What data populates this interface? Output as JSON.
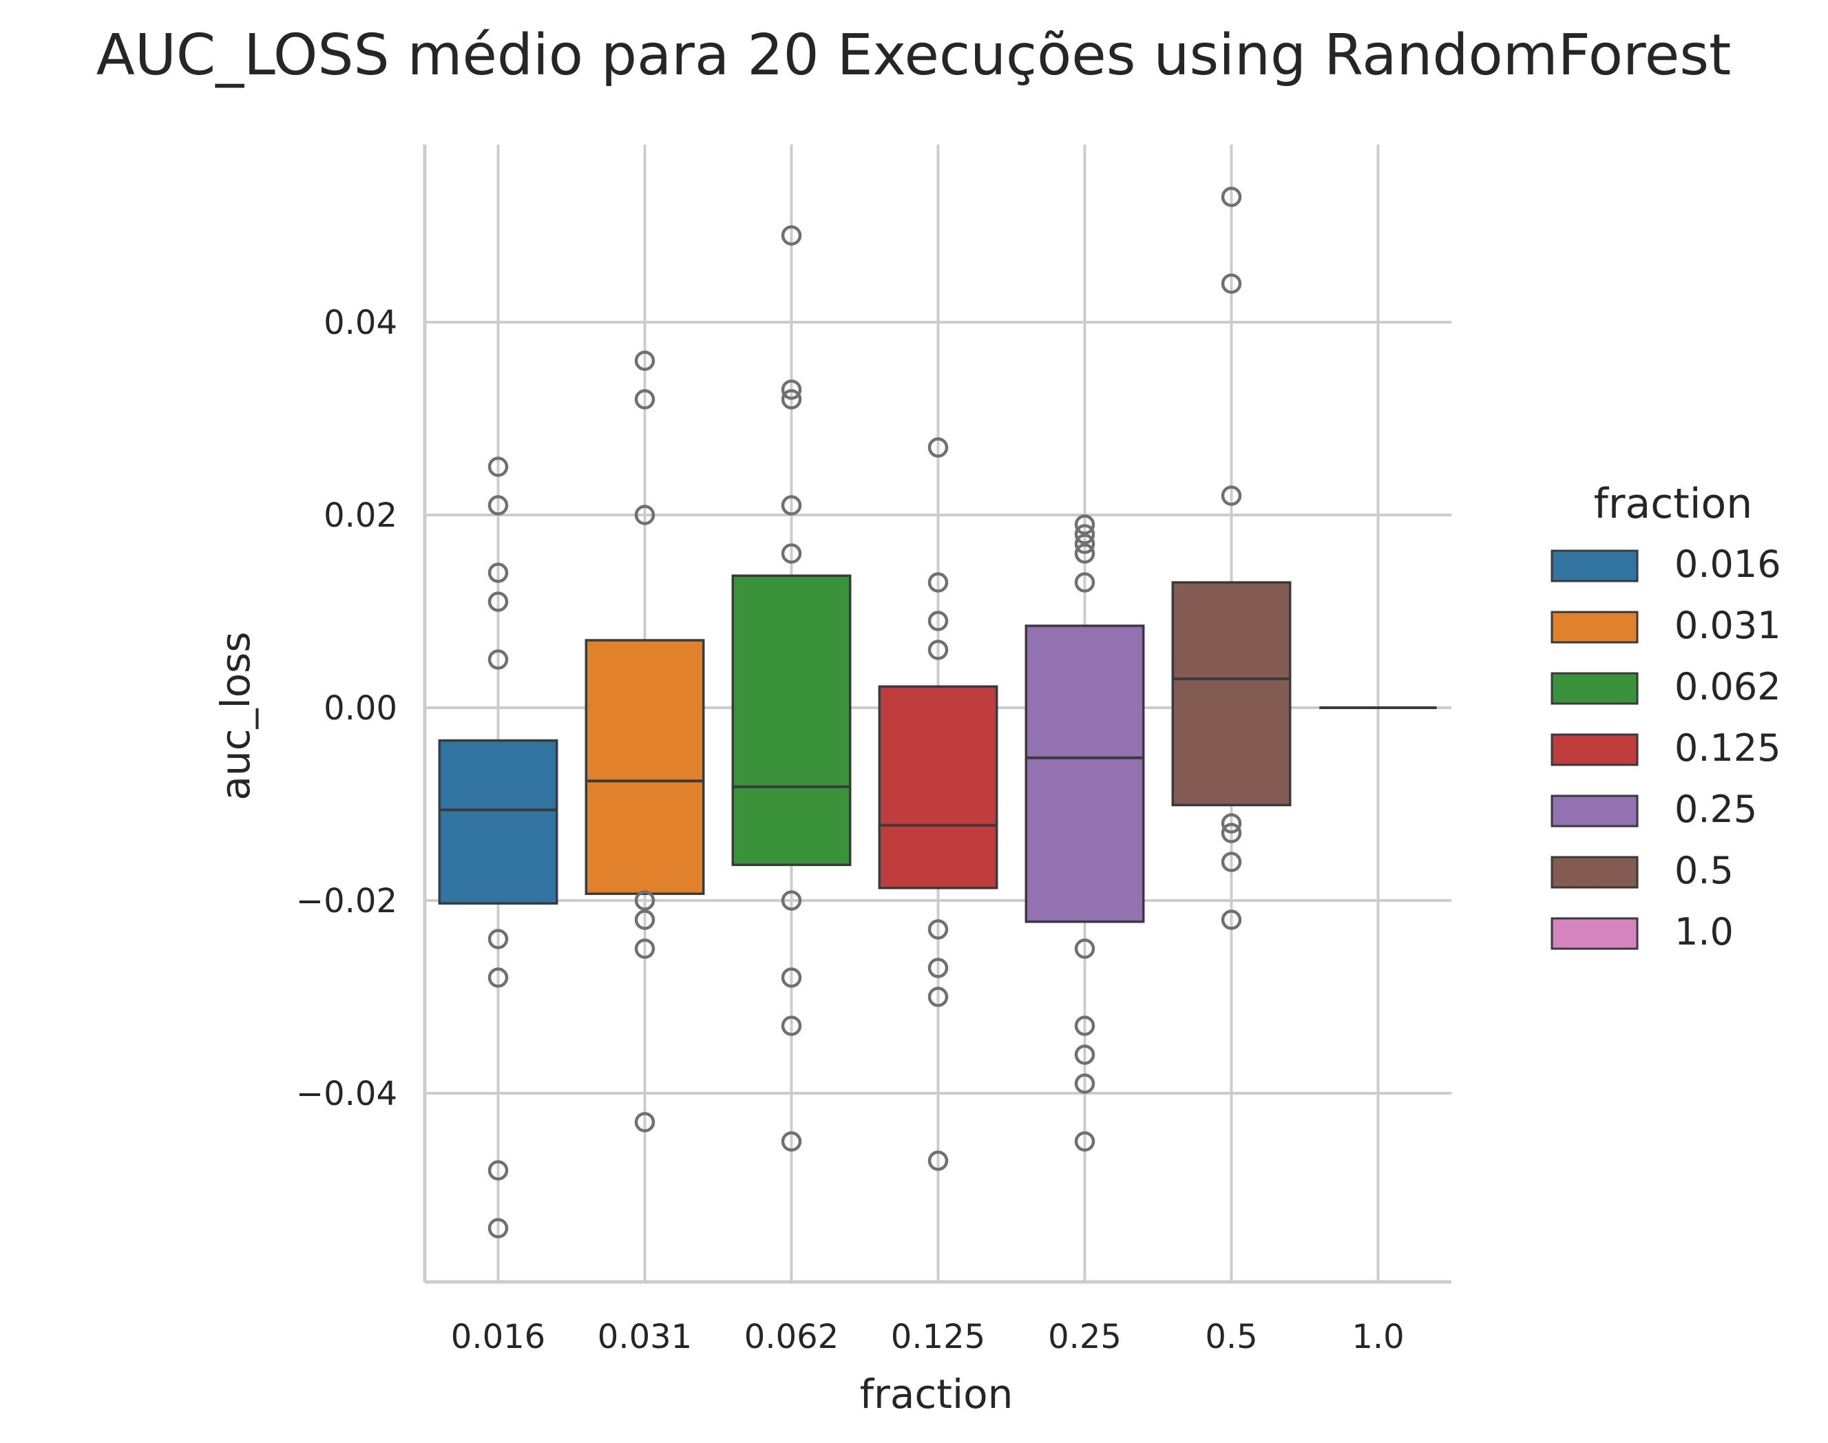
{
  "chart_data": {
    "type": "box",
    "title": "AUC_LOSS médio para 20 Execuções using RandomForest",
    "xlabel": "fraction",
    "ylabel": "auc_loss",
    "categories": [
      "0.016",
      "0.031",
      "0.062",
      "0.125",
      "0.25",
      "0.5",
      "1.0"
    ],
    "yticks": [
      -0.04,
      -0.02,
      0.0,
      0.02,
      0.04
    ],
    "ytick_labels": [
      "−0.04",
      "−0.02",
      "0.00",
      "0.02",
      "0.04"
    ],
    "ylim": [
      -0.059,
      0.059
    ],
    "grid": true,
    "legend": {
      "title": "fraction",
      "placement": "right",
      "entries": [
        "0.016",
        "0.031",
        "0.062",
        "0.125",
        "0.25",
        "0.5",
        "1.0"
      ]
    },
    "colors": [
      "#3274a1",
      "#e1812c",
      "#3a923a",
      "#c03d3e",
      "#9372b2",
      "#845b53",
      "#d684bd"
    ],
    "boxes": [
      {
        "name": "0.016",
        "q1": -0.0203,
        "median": -0.0106,
        "q3": -0.0034,
        "outliers": [
          0.025,
          0.021,
          0.014,
          0.011,
          0.005,
          -0.024,
          -0.028,
          -0.048,
          -0.054
        ]
      },
      {
        "name": "0.031",
        "q1": -0.0193,
        "median": -0.0076,
        "q3": 0.007,
        "outliers": [
          0.036,
          0.032,
          0.02,
          -0.02,
          -0.022,
          -0.025,
          -0.043
        ]
      },
      {
        "name": "0.062",
        "q1": -0.0163,
        "median": -0.0082,
        "q3": 0.0137,
        "outliers": [
          0.049,
          0.033,
          0.032,
          0.021,
          0.016,
          -0.02,
          -0.028,
          -0.033,
          -0.045
        ]
      },
      {
        "name": "0.125",
        "q1": -0.0187,
        "median": -0.0122,
        "q3": 0.0022,
        "outliers": [
          0.027,
          0.013,
          0.009,
          0.006,
          -0.023,
          -0.027,
          -0.03,
          -0.047
        ]
      },
      {
        "name": "0.25",
        "q1": -0.0222,
        "median": -0.0052,
        "q3": 0.0085,
        "outliers": [
          0.019,
          0.018,
          0.017,
          0.016,
          0.013,
          -0.025,
          -0.033,
          -0.036,
          -0.039,
          -0.045
        ]
      },
      {
        "name": "0.5",
        "q1": -0.0101,
        "median": 0.003,
        "q3": 0.013,
        "outliers": [
          0.053,
          0.044,
          0.022,
          -0.012,
          -0.013,
          -0.016,
          -0.022
        ]
      },
      {
        "name": "1.0",
        "q1": 0.0,
        "median": 0.0,
        "q3": 0.0,
        "outliers": []
      }
    ]
  }
}
